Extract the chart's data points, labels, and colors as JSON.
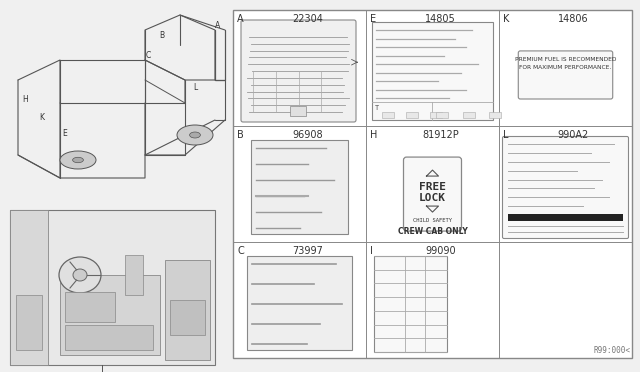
{
  "bg_color": "#f0f0f0",
  "grid_bg": "#ffffff",
  "border_color": "#888888",
  "text_color": "#333333",
  "ref_code": "R99:000<",
  "gx0": 233,
  "gx1": 632,
  "gy0": 10,
  "gy1": 358,
  "cells": [
    {
      "label": "A",
      "part": "22304",
      "row": 0,
      "col": 0
    },
    {
      "label": "E",
      "part": "14805",
      "row": 0,
      "col": 1
    },
    {
      "label": "K",
      "part": "14806",
      "row": 0,
      "col": 2
    },
    {
      "label": "B",
      "part": "96908",
      "row": 1,
      "col": 0
    },
    {
      "label": "H",
      "part": "81912P",
      "row": 1,
      "col": 1
    },
    {
      "label": "L",
      "part": "990A2",
      "row": 1,
      "col": 2
    },
    {
      "label": "C",
      "part": "73997",
      "row": 2,
      "col": 0
    },
    {
      "label": "I",
      "part": "99090",
      "row": 2,
      "col": 1
    },
    {
      "label": "",
      "part": "",
      "row": 2,
      "col": 2
    }
  ],
  "fuel_text_1": "PREMIUM FUEL IS RECOMMENDED",
  "fuel_text_2": "FOR MAXIMUM PERFORMANCE.",
  "freelock_line1": "FREE",
  "freelock_line2": "LOCK",
  "freelock_sub": "CHILD SAFETY",
  "crew_cab_text": "CREW CAB ONLY"
}
